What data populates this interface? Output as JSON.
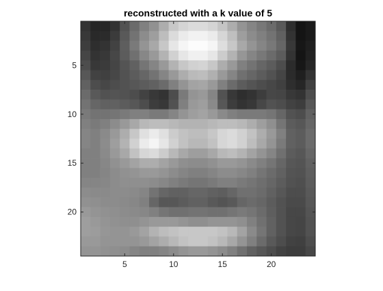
{
  "chart_data": {
    "type": "heatmap",
    "title": "reconstructed with a k value of 5",
    "xlabel": "",
    "ylabel": "",
    "colormap": "gray",
    "grid": false,
    "rows": 24,
    "cols": 24,
    "xlim": [
      0.5,
      24.5
    ],
    "ylim": [
      0.5,
      24.5
    ],
    "x_ticks": [
      5,
      10,
      15,
      20
    ],
    "y_ticks": [
      5,
      10,
      15,
      20
    ],
    "value_range": [
      0,
      1
    ],
    "values": [
      [
        0.2,
        0.15,
        0.15,
        0.2,
        0.32,
        0.42,
        0.5,
        0.57,
        0.68,
        0.78,
        0.83,
        0.86,
        0.86,
        0.83,
        0.77,
        0.68,
        0.58,
        0.52,
        0.47,
        0.42,
        0.35,
        0.18,
        0.08,
        0.1
      ],
      [
        0.22,
        0.16,
        0.17,
        0.23,
        0.35,
        0.45,
        0.55,
        0.62,
        0.74,
        0.86,
        0.92,
        0.95,
        0.95,
        0.92,
        0.84,
        0.75,
        0.62,
        0.55,
        0.5,
        0.45,
        0.38,
        0.2,
        0.08,
        0.1
      ],
      [
        0.24,
        0.18,
        0.2,
        0.26,
        0.37,
        0.48,
        0.58,
        0.66,
        0.78,
        0.9,
        0.96,
        0.99,
        0.99,
        0.96,
        0.87,
        0.78,
        0.66,
        0.58,
        0.52,
        0.47,
        0.4,
        0.22,
        0.09,
        0.12
      ],
      [
        0.27,
        0.2,
        0.22,
        0.28,
        0.36,
        0.44,
        0.53,
        0.6,
        0.7,
        0.82,
        0.9,
        0.94,
        0.94,
        0.9,
        0.8,
        0.7,
        0.59,
        0.52,
        0.47,
        0.42,
        0.36,
        0.2,
        0.08,
        0.13
      ],
      [
        0.3,
        0.22,
        0.23,
        0.27,
        0.33,
        0.38,
        0.46,
        0.52,
        0.6,
        0.7,
        0.78,
        0.82,
        0.83,
        0.78,
        0.68,
        0.6,
        0.5,
        0.45,
        0.4,
        0.36,
        0.3,
        0.17,
        0.09,
        0.15
      ],
      [
        0.34,
        0.26,
        0.25,
        0.28,
        0.32,
        0.36,
        0.4,
        0.45,
        0.52,
        0.6,
        0.68,
        0.73,
        0.74,
        0.69,
        0.6,
        0.52,
        0.44,
        0.4,
        0.36,
        0.32,
        0.27,
        0.17,
        0.12,
        0.2
      ],
      [
        0.38,
        0.3,
        0.28,
        0.3,
        0.32,
        0.34,
        0.36,
        0.38,
        0.42,
        0.5,
        0.58,
        0.64,
        0.65,
        0.6,
        0.5,
        0.42,
        0.36,
        0.33,
        0.3,
        0.28,
        0.25,
        0.18,
        0.15,
        0.25
      ],
      [
        0.42,
        0.35,
        0.32,
        0.33,
        0.32,
        0.3,
        0.26,
        0.22,
        0.2,
        0.3,
        0.48,
        0.58,
        0.6,
        0.52,
        0.32,
        0.22,
        0.18,
        0.2,
        0.24,
        0.28,
        0.27,
        0.22,
        0.2,
        0.3
      ],
      [
        0.45,
        0.4,
        0.38,
        0.38,
        0.36,
        0.34,
        0.3,
        0.24,
        0.22,
        0.32,
        0.5,
        0.6,
        0.62,
        0.54,
        0.34,
        0.24,
        0.2,
        0.22,
        0.28,
        0.32,
        0.3,
        0.26,
        0.24,
        0.34
      ],
      [
        0.48,
        0.45,
        0.45,
        0.46,
        0.48,
        0.5,
        0.5,
        0.48,
        0.48,
        0.52,
        0.58,
        0.62,
        0.64,
        0.6,
        0.54,
        0.5,
        0.48,
        0.48,
        0.48,
        0.46,
        0.4,
        0.32,
        0.3,
        0.38
      ],
      [
        0.5,
        0.48,
        0.5,
        0.55,
        0.6,
        0.66,
        0.72,
        0.74,
        0.74,
        0.72,
        0.7,
        0.7,
        0.7,
        0.72,
        0.74,
        0.74,
        0.72,
        0.68,
        0.62,
        0.56,
        0.46,
        0.36,
        0.34,
        0.4
      ],
      [
        0.52,
        0.5,
        0.54,
        0.6,
        0.68,
        0.78,
        0.88,
        0.92,
        0.88,
        0.8,
        0.76,
        0.74,
        0.74,
        0.78,
        0.84,
        0.86,
        0.82,
        0.76,
        0.68,
        0.6,
        0.5,
        0.38,
        0.36,
        0.42
      ],
      [
        0.52,
        0.5,
        0.55,
        0.62,
        0.7,
        0.82,
        0.92,
        0.96,
        0.9,
        0.82,
        0.76,
        0.72,
        0.72,
        0.76,
        0.84,
        0.86,
        0.82,
        0.74,
        0.66,
        0.58,
        0.48,
        0.38,
        0.36,
        0.42
      ],
      [
        0.5,
        0.5,
        0.54,
        0.6,
        0.66,
        0.76,
        0.84,
        0.86,
        0.8,
        0.72,
        0.66,
        0.62,
        0.62,
        0.66,
        0.72,
        0.74,
        0.7,
        0.64,
        0.58,
        0.52,
        0.44,
        0.36,
        0.34,
        0.4
      ],
      [
        0.5,
        0.5,
        0.53,
        0.57,
        0.6,
        0.64,
        0.68,
        0.68,
        0.64,
        0.6,
        0.56,
        0.55,
        0.55,
        0.57,
        0.6,
        0.6,
        0.58,
        0.54,
        0.5,
        0.46,
        0.4,
        0.34,
        0.33,
        0.38
      ],
      [
        0.5,
        0.5,
        0.52,
        0.55,
        0.57,
        0.58,
        0.6,
        0.6,
        0.58,
        0.55,
        0.52,
        0.5,
        0.5,
        0.52,
        0.55,
        0.55,
        0.53,
        0.5,
        0.46,
        0.42,
        0.38,
        0.33,
        0.32,
        0.37
      ],
      [
        0.52,
        0.52,
        0.53,
        0.55,
        0.56,
        0.56,
        0.56,
        0.55,
        0.53,
        0.5,
        0.48,
        0.46,
        0.46,
        0.48,
        0.5,
        0.5,
        0.48,
        0.46,
        0.43,
        0.4,
        0.36,
        0.32,
        0.31,
        0.36
      ],
      [
        0.55,
        0.54,
        0.54,
        0.55,
        0.55,
        0.54,
        0.52,
        0.45,
        0.4,
        0.38,
        0.38,
        0.4,
        0.4,
        0.38,
        0.37,
        0.4,
        0.44,
        0.44,
        0.42,
        0.38,
        0.34,
        0.3,
        0.3,
        0.35
      ],
      [
        0.57,
        0.56,
        0.55,
        0.55,
        0.54,
        0.53,
        0.5,
        0.4,
        0.34,
        0.34,
        0.36,
        0.38,
        0.38,
        0.35,
        0.33,
        0.35,
        0.4,
        0.42,
        0.4,
        0.36,
        0.32,
        0.29,
        0.29,
        0.34
      ],
      [
        0.6,
        0.58,
        0.57,
        0.56,
        0.55,
        0.54,
        0.53,
        0.5,
        0.46,
        0.44,
        0.44,
        0.45,
        0.45,
        0.44,
        0.44,
        0.46,
        0.48,
        0.46,
        0.42,
        0.37,
        0.32,
        0.28,
        0.28,
        0.33
      ],
      [
        0.62,
        0.6,
        0.58,
        0.57,
        0.56,
        0.56,
        0.58,
        0.6,
        0.6,
        0.6,
        0.58,
        0.56,
        0.56,
        0.58,
        0.58,
        0.58,
        0.56,
        0.5,
        0.44,
        0.38,
        0.32,
        0.28,
        0.27,
        0.32
      ],
      [
        0.62,
        0.61,
        0.59,
        0.58,
        0.58,
        0.6,
        0.64,
        0.7,
        0.74,
        0.76,
        0.78,
        0.78,
        0.78,
        0.78,
        0.76,
        0.72,
        0.64,
        0.54,
        0.46,
        0.38,
        0.32,
        0.28,
        0.27,
        0.32
      ],
      [
        0.6,
        0.6,
        0.58,
        0.58,
        0.58,
        0.58,
        0.6,
        0.64,
        0.68,
        0.72,
        0.76,
        0.78,
        0.78,
        0.76,
        0.72,
        0.66,
        0.58,
        0.5,
        0.42,
        0.35,
        0.3,
        0.26,
        0.25,
        0.3
      ],
      [
        0.58,
        0.58,
        0.57,
        0.56,
        0.55,
        0.52,
        0.5,
        0.5,
        0.52,
        0.55,
        0.58,
        0.6,
        0.6,
        0.58,
        0.55,
        0.5,
        0.44,
        0.38,
        0.34,
        0.3,
        0.26,
        0.24,
        0.24,
        0.28
      ]
    ]
  }
}
